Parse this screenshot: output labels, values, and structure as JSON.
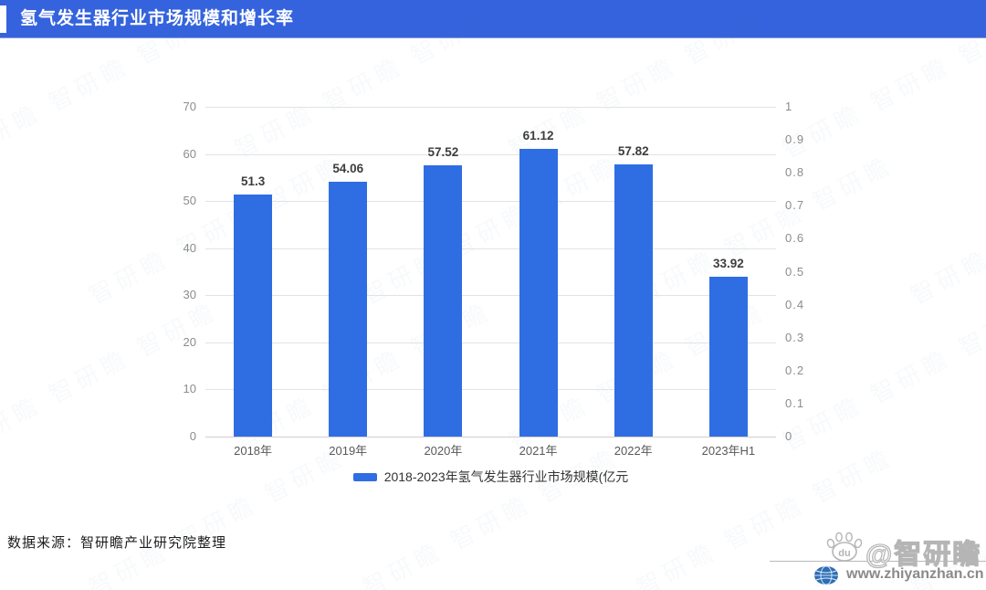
{
  "header": {
    "title": "氢气发生器行业市场规模和增长率"
  },
  "chart_data": {
    "type": "bar",
    "title": "氢气发生器行业市场规模和增长率",
    "categories": [
      "2018年",
      "2019年",
      "2020年",
      "2021年",
      "2022年",
      "2023年H1"
    ],
    "values": [
      51.3,
      54.06,
      57.52,
      61.12,
      57.82,
      33.92
    ],
    "value_labels": [
      "51.3",
      "54.06",
      "57.52",
      "61.12",
      "57.82",
      "33.92"
    ],
    "left_axis": {
      "min": 0,
      "max": 70,
      "ticks": [
        0,
        10,
        20,
        30,
        40,
        50,
        60,
        70
      ]
    },
    "right_axis": {
      "min": 0,
      "max": 1,
      "tick_labels": [
        "0",
        "0.1",
        "0.2",
        "0.3",
        "0.4",
        "0.5",
        "0.6",
        "0.7",
        "0.8",
        "0.9",
        "1"
      ]
    },
    "grid": true,
    "legend_position": "bottom",
    "legend": [
      {
        "label": "2018-2023年氢气发生器行业市场规模(亿元",
        "color": "#2f6de3"
      }
    ],
    "bar_color": "#2f6de3"
  },
  "source_note": "数据来源：智研瞻产业研究院整理",
  "watermark": {
    "baidu_text": "du",
    "handle": "@智研瞻",
    "website": "www.zhiyanzhan.cn",
    "pattern_text": "智研瞻 智研瞻 智研瞻"
  },
  "colors": {
    "header_bg": "#3563dd",
    "bar": "#2f6de3",
    "grid": "#e3e3e3",
    "axis_label": "#8c8c8c",
    "data_label": "#3d3d3d"
  }
}
